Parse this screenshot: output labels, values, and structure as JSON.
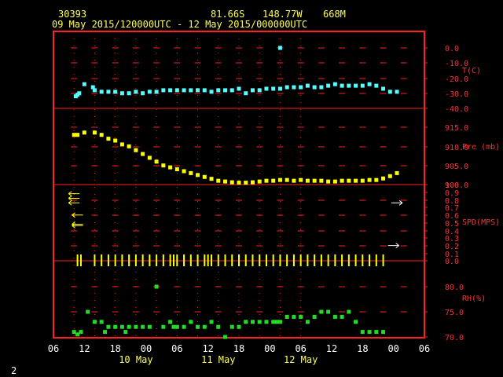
{
  "header": {
    "station": "30393",
    "lat": "81.66S",
    "lon": "148.77W",
    "elev": "668M",
    "period": "09 May 2015/120000UTC - 12 May 2015/000000UTC"
  },
  "footer_num": "2",
  "colors": {
    "frame": "#ff2020",
    "grid": "#ff2020",
    "text_yellow": "#ffff55",
    "temp": "#55ffff",
    "pres": "#ffff00",
    "rh": "#22dd22",
    "wind": "#ffffff"
  },
  "chart_data": {
    "type": "scatter",
    "x_ticks": [
      "06",
      "12",
      "18",
      "00",
      "06",
      "12",
      "18",
      "00",
      "06",
      "12",
      "18",
      "00",
      "06"
    ],
    "day_labels": [
      "10 May",
      "11 May",
      "12 May"
    ],
    "panels": [
      {
        "id": "temp",
        "label": "T(C)",
        "ylim": [
          -40,
          5
        ],
        "ticks": [
          "0.0",
          "-10.0",
          "-20.0",
          "-30.0",
          "-40.0"
        ],
        "points": [
          [
            12.5,
            -32
          ],
          [
            13,
            -31
          ],
          [
            13.5,
            -30
          ],
          [
            15,
            -24
          ],
          [
            17.5,
            -26
          ],
          [
            18,
            -28
          ],
          [
            20,
            -29
          ],
          [
            22,
            -29
          ],
          [
            24,
            -29
          ],
          [
            26,
            -30
          ],
          [
            28,
            -30
          ],
          [
            30,
            -29
          ],
          [
            32,
            -30
          ],
          [
            34,
            -29
          ],
          [
            36,
            -29
          ],
          [
            38,
            -28
          ],
          [
            40,
            -28
          ],
          [
            42,
            -28
          ],
          [
            44,
            -28
          ],
          [
            46,
            -28
          ],
          [
            48,
            -28
          ],
          [
            50,
            -28
          ],
          [
            52,
            -29
          ],
          [
            54,
            -28
          ],
          [
            56,
            -28
          ],
          [
            58,
            -28
          ],
          [
            60,
            -27
          ],
          [
            62,
            -30
          ],
          [
            64,
            -28
          ],
          [
            66,
            -28
          ],
          [
            68,
            -27
          ],
          [
            70,
            -27
          ],
          [
            72,
            -27
          ],
          [
            74,
            -26
          ],
          [
            76,
            -26
          ],
          [
            78,
            -26
          ],
          [
            80,
            -25
          ],
          [
            82,
            -26
          ],
          [
            84,
            -26
          ],
          [
            86,
            -25
          ],
          [
            88,
            -24
          ],
          [
            90,
            -25
          ],
          [
            92,
            -25
          ],
          [
            94,
            -25
          ],
          [
            96,
            -25
          ],
          [
            98,
            -24
          ],
          [
            100,
            -25
          ],
          [
            102,
            -27
          ],
          [
            104,
            -29
          ],
          [
            106,
            -29
          ],
          [
            72,
            0
          ]
        ]
      },
      {
        "id": "pres",
        "label": "Pre (mb)",
        "ylim": [
          900,
          917
        ],
        "ticks": [
          "915.0",
          "910.0",
          "905.0",
          "900.0"
        ],
        "points": [
          [
            12,
            913
          ],
          [
            13,
            913
          ],
          [
            15,
            913.6
          ],
          [
            18,
            913.6
          ],
          [
            20,
            913
          ],
          [
            22,
            912
          ],
          [
            24,
            911.5
          ],
          [
            26,
            910.5
          ],
          [
            28,
            910
          ],
          [
            30,
            909
          ],
          [
            32,
            908
          ],
          [
            34,
            907
          ],
          [
            36,
            906
          ],
          [
            38,
            905
          ],
          [
            40,
            904.5
          ],
          [
            42,
            904
          ],
          [
            44,
            903.5
          ],
          [
            46,
            903
          ],
          [
            48,
            902.5
          ],
          [
            50,
            902
          ],
          [
            52,
            901.5
          ],
          [
            54,
            901
          ],
          [
            56,
            900.8
          ],
          [
            58,
            900.6
          ],
          [
            60,
            900.5
          ],
          [
            62,
            900.5
          ],
          [
            64,
            900.6
          ],
          [
            66,
            900.8
          ],
          [
            68,
            901
          ],
          [
            70,
            901
          ],
          [
            72,
            901.2
          ],
          [
            74,
            901.2
          ],
          [
            76,
            901
          ],
          [
            78,
            901.2
          ],
          [
            80,
            901
          ],
          [
            82,
            901
          ],
          [
            84,
            901
          ],
          [
            86,
            900.8
          ],
          [
            88,
            900.8
          ],
          [
            90,
            901
          ],
          [
            92,
            901
          ],
          [
            94,
            901
          ],
          [
            96,
            901
          ],
          [
            98,
            901.2
          ],
          [
            100,
            901.2
          ],
          [
            102,
            901.6
          ],
          [
            104,
            902.2
          ],
          [
            106,
            903
          ]
        ]
      },
      {
        "id": "spd",
        "label": "SPD(MPS)",
        "ylim": [
          0,
          1.0
        ],
        "ticks": [
          "1.0",
          "0.9",
          "0.8",
          "0.7",
          "0.6",
          "0.5",
          "0.4",
          "0.3",
          "0.2",
          "0.1",
          "0.0"
        ],
        "barbs": [
          [
            12,
            0.88,
            -1
          ],
          [
            12,
            0.82,
            -1
          ],
          [
            12,
            0.76,
            -1
          ],
          [
            13,
            0.6,
            -1
          ],
          [
            13,
            0.48,
            -1
          ],
          [
            13,
            0.46,
            -1
          ],
          [
            106,
            0.76,
            1
          ],
          [
            105,
            0.2,
            1
          ]
        ],
        "ticks_x": [
          13,
          14,
          18,
          20,
          22,
          24,
          26,
          28,
          30,
          32,
          34,
          36,
          38,
          40,
          41,
          42,
          44,
          46,
          48,
          50,
          51,
          52,
          54,
          56,
          58,
          60,
          62,
          64,
          66,
          68,
          70,
          72,
          74,
          76,
          78,
          80,
          82,
          84,
          86,
          88,
          90,
          92,
          94,
          96,
          98,
          100,
          102
        ]
      },
      {
        "id": "rh",
        "label": "RH(%)",
        "ylim": [
          70,
          82
        ],
        "ticks": [
          "80.0",
          "75.0",
          "70.0"
        ],
        "points": [
          [
            12,
            71
          ],
          [
            13,
            70.5
          ],
          [
            14,
            71
          ],
          [
            16,
            75
          ],
          [
            18,
            73
          ],
          [
            20,
            73
          ],
          [
            21,
            71
          ],
          [
            22,
            72
          ],
          [
            24,
            72
          ],
          [
            26,
            72
          ],
          [
            27,
            71
          ],
          [
            28,
            72
          ],
          [
            30,
            72
          ],
          [
            32,
            72
          ],
          [
            34,
            72
          ],
          [
            36,
            80
          ],
          [
            38,
            72
          ],
          [
            40,
            73
          ],
          [
            41,
            72
          ],
          [
            42,
            72
          ],
          [
            44,
            72
          ],
          [
            46,
            73
          ],
          [
            48,
            72
          ],
          [
            50,
            72
          ],
          [
            52,
            73
          ],
          [
            54,
            72
          ],
          [
            56,
            70
          ],
          [
            58,
            72
          ],
          [
            60,
            72
          ],
          [
            62,
            73
          ],
          [
            64,
            73
          ],
          [
            66,
            73
          ],
          [
            68,
            73
          ],
          [
            70,
            73
          ],
          [
            71,
            73
          ],
          [
            72,
            73
          ],
          [
            74,
            74
          ],
          [
            76,
            74
          ],
          [
            78,
            74
          ],
          [
            80,
            73
          ],
          [
            82,
            74
          ],
          [
            84,
            75
          ],
          [
            86,
            75
          ],
          [
            88,
            74
          ],
          [
            90,
            74
          ],
          [
            92,
            75
          ],
          [
            94,
            73
          ],
          [
            96,
            71
          ],
          [
            98,
            71
          ],
          [
            100,
            71
          ],
          [
            102,
            71
          ]
        ]
      }
    ]
  }
}
